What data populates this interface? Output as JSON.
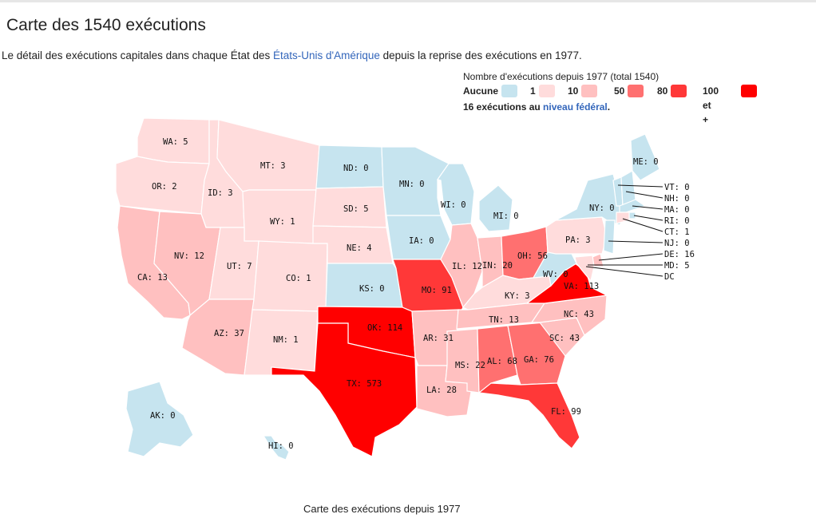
{
  "page": {
    "title": "Carte des 1540 exécutions",
    "intro_before": "Le détail des exécutions capitales dans chaque État des ",
    "intro_link": "États-Unis d'Amérique",
    "intro_after": " depuis la reprise des exécutions en 1977.",
    "caption": "Carte des exécutions depuis 1977"
  },
  "legend": {
    "title": "Nombre d'exécutions depuis 1977 (total 1540)",
    "items": [
      {
        "label": "Aucune",
        "color": "#c6e4ef"
      },
      {
        "label": "1",
        "color": "#ffdcdc"
      },
      {
        "label": "10",
        "color": "#ffc0c0"
      },
      {
        "label": "50",
        "color": "#ff7070"
      },
      {
        "label": "80",
        "color": "#ff3838"
      },
      {
        "label": "100 et +",
        "color": "#ff0000"
      }
    ],
    "federal_count": "16 exécutions au ",
    "federal_link": "niveau fédéral",
    "federal_end": "."
  },
  "states": [
    {
      "code": "WA",
      "value": 5
    },
    {
      "code": "OR",
      "value": 2
    },
    {
      "code": "CA",
      "value": 13
    },
    {
      "code": "ID",
      "value": 3
    },
    {
      "code": "NV",
      "value": 12
    },
    {
      "code": "MT",
      "value": 3
    },
    {
      "code": "WY",
      "value": 1
    },
    {
      "code": "UT",
      "value": 7
    },
    {
      "code": "AZ",
      "value": 37
    },
    {
      "code": "CO",
      "value": 1
    },
    {
      "code": "NM",
      "value": 1
    },
    {
      "code": "ND",
      "value": 0
    },
    {
      "code": "SD",
      "value": 5
    },
    {
      "code": "NE",
      "value": 4
    },
    {
      "code": "KS",
      "value": 0
    },
    {
      "code": "OK",
      "value": 114
    },
    {
      "code": "TX",
      "value": 573
    },
    {
      "code": "MN",
      "value": 0
    },
    {
      "code": "IA",
      "value": 0
    },
    {
      "code": "MO",
      "value": 91
    },
    {
      "code": "AR",
      "value": 31
    },
    {
      "code": "LA",
      "value": 28
    },
    {
      "code": "WI",
      "value": 0
    },
    {
      "code": "IL",
      "value": 12
    },
    {
      "code": "MI",
      "value": 0
    },
    {
      "code": "IN",
      "value": 20
    },
    {
      "code": "OH",
      "value": 56
    },
    {
      "code": "KY",
      "value": 3
    },
    {
      "code": "TN",
      "value": 13
    },
    {
      "code": "MS",
      "value": 22
    },
    {
      "code": "AL",
      "value": 68
    },
    {
      "code": "GA",
      "value": 76
    },
    {
      "code": "FL",
      "value": 99
    },
    {
      "code": "SC",
      "value": 43
    },
    {
      "code": "NC",
      "value": 43
    },
    {
      "code": "VA",
      "value": 113
    },
    {
      "code": "WV",
      "value": 0
    },
    {
      "code": "PA",
      "value": 3
    },
    {
      "code": "NY",
      "value": 0
    },
    {
      "code": "ME",
      "value": 0
    },
    {
      "code": "AK",
      "value": 0
    },
    {
      "code": "HI",
      "value": 0
    },
    {
      "code": "VT",
      "value": 0
    },
    {
      "code": "NH",
      "value": 0
    },
    {
      "code": "MA",
      "value": 0
    },
    {
      "code": "RI",
      "value": 0
    },
    {
      "code": "CT",
      "value": 1
    },
    {
      "code": "NJ",
      "value": 0
    },
    {
      "code": "DE",
      "value": 16
    },
    {
      "code": "MD",
      "value": 5
    },
    {
      "code": "DC",
      "value": null
    }
  ]
}
